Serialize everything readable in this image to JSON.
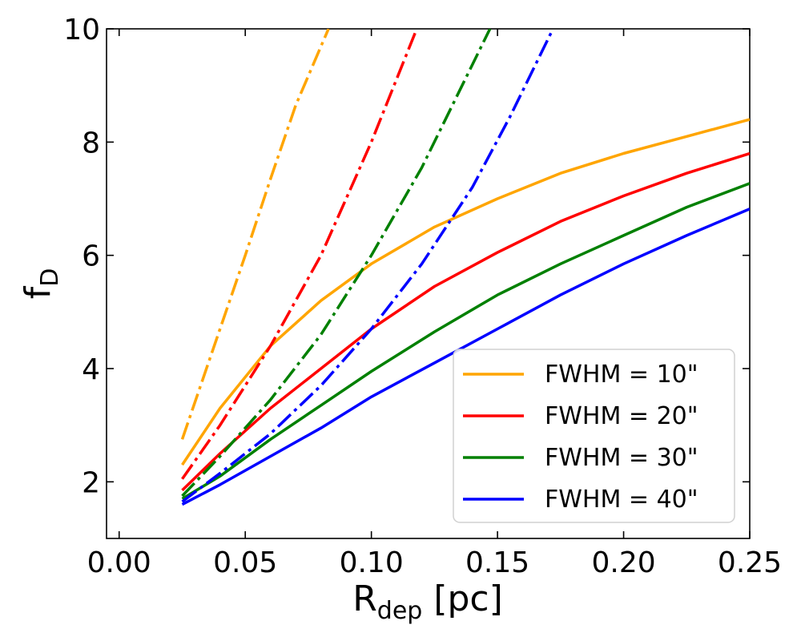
{
  "chart_data": {
    "type": "line",
    "title": "",
    "xlabel": {
      "main": "R",
      "sub": "dep",
      "unit": " [pc]"
    },
    "ylabel": {
      "main": "f",
      "sub": "D"
    },
    "xlim": [
      -0.005,
      0.25
    ],
    "ylim": [
      1.0,
      10.0
    ],
    "xticks": [
      0.0,
      0.05,
      0.1,
      0.15,
      0.2,
      0.25
    ],
    "xtick_labels": [
      "0.00",
      "0.05",
      "0.10",
      "0.15",
      "0.20",
      "0.25"
    ],
    "yticks": [
      2,
      4,
      6,
      8,
      10
    ],
    "ytick_labels": [
      "2",
      "4",
      "6",
      "8",
      "10"
    ],
    "legend_position": "lower-right",
    "series": [
      {
        "name": "FWHM = 10\"",
        "label_prefix": "FWHM",
        "label_value": "10\"",
        "color": "#ffa500",
        "style": "solid",
        "x": [
          0.025,
          0.04,
          0.06,
          0.08,
          0.1,
          0.125,
          0.15,
          0.175,
          0.2,
          0.225,
          0.25
        ],
        "y": [
          2.3,
          3.3,
          4.4,
          5.2,
          5.85,
          6.5,
          7.0,
          7.45,
          7.8,
          8.1,
          8.4
        ]
      },
      {
        "name": "FWHM = 20\"",
        "label_prefix": "FWHM",
        "label_value": "20\"",
        "color": "#ff0000",
        "style": "solid",
        "x": [
          0.025,
          0.04,
          0.06,
          0.08,
          0.1,
          0.125,
          0.15,
          0.175,
          0.2,
          0.225,
          0.25
        ],
        "y": [
          1.85,
          2.5,
          3.3,
          4.0,
          4.7,
          5.45,
          6.05,
          6.6,
          7.05,
          7.45,
          7.8
        ]
      },
      {
        "name": "FWHM = 30\"",
        "label_prefix": "FWHM",
        "label_value": "30\"",
        "color": "#008000",
        "style": "solid",
        "x": [
          0.025,
          0.04,
          0.06,
          0.08,
          0.1,
          0.125,
          0.15,
          0.175,
          0.2,
          0.225,
          0.25
        ],
        "y": [
          1.7,
          2.1,
          2.75,
          3.35,
          3.95,
          4.65,
          5.3,
          5.85,
          6.35,
          6.85,
          7.27
        ]
      },
      {
        "name": "FWHM = 40\"",
        "label_prefix": "FWHM",
        "label_value": "40\"",
        "color": "#0000ff",
        "style": "solid",
        "x": [
          0.025,
          0.04,
          0.06,
          0.08,
          0.1,
          0.125,
          0.15,
          0.175,
          0.2,
          0.225,
          0.25
        ],
        "y": [
          1.6,
          1.95,
          2.45,
          2.95,
          3.5,
          4.1,
          4.7,
          5.3,
          5.85,
          6.35,
          6.82
        ]
      },
      {
        "name": "FWHM = 10\" (dash-dot)",
        "color": "#ffa500",
        "style": "dashdot",
        "x": [
          0.025,
          0.04,
          0.05,
          0.06,
          0.07,
          0.083
        ],
        "y": [
          2.75,
          4.7,
          6.0,
          7.35,
          8.65,
          10.0
        ]
      },
      {
        "name": "FWHM = 20\" (dash-dot)",
        "color": "#ff0000",
        "style": "dashdot",
        "x": [
          0.025,
          0.04,
          0.06,
          0.08,
          0.1,
          0.118
        ],
        "y": [
          2.05,
          3.0,
          4.4,
          6.0,
          8.0,
          10.0
        ]
      },
      {
        "name": "FWHM = 30\" (dash-dot)",
        "color": "#008000",
        "style": "dashdot",
        "x": [
          0.025,
          0.04,
          0.06,
          0.08,
          0.1,
          0.12,
          0.147
        ],
        "y": [
          1.75,
          2.45,
          3.45,
          4.6,
          6.0,
          7.55,
          10.0
        ]
      },
      {
        "name": "FWHM = 40\" (dash-dot)",
        "color": "#0000ff",
        "style": "dashdot",
        "x": [
          0.025,
          0.04,
          0.06,
          0.08,
          0.1,
          0.12,
          0.14,
          0.155,
          0.172
        ],
        "y": [
          1.65,
          2.15,
          2.85,
          3.7,
          4.7,
          5.85,
          7.2,
          8.45,
          10.0
        ]
      }
    ]
  }
}
